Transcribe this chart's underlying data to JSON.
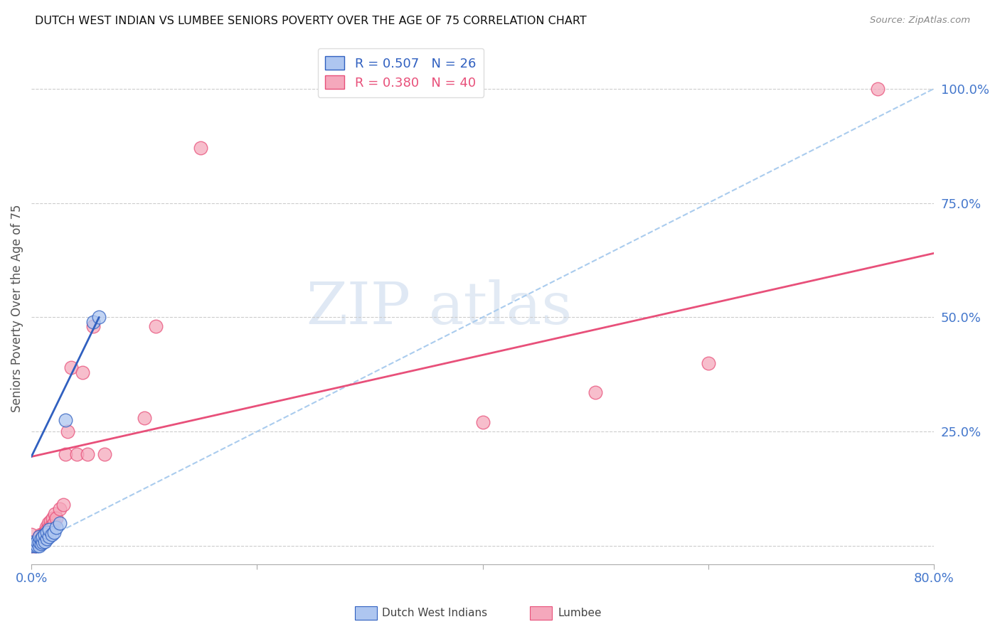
{
  "title": "DUTCH WEST INDIAN VS LUMBEE SENIORS POVERTY OVER THE AGE OF 75 CORRELATION CHART",
  "source": "Source: ZipAtlas.com",
  "ylabel": "Seniors Poverty Over the Age of 75",
  "xlim": [
    0.0,
    0.8
  ],
  "ylim": [
    -0.04,
    1.08
  ],
  "xticks": [
    0.0,
    0.2,
    0.4,
    0.6,
    0.8
  ],
  "xtick_labels": [
    "0.0%",
    "",
    "",
    "",
    "80.0%"
  ],
  "ytick_positions": [
    0.0,
    0.25,
    0.5,
    0.75,
    1.0
  ],
  "ytick_labels": [
    "",
    "25.0%",
    "50.0%",
    "75.0%",
    "100.0%"
  ],
  "legend_blue_r": "R = 0.507",
  "legend_blue_n": "N = 26",
  "legend_pink_r": "R = 0.380",
  "legend_pink_n": "N = 40",
  "blue_color": "#AEC6F0",
  "pink_color": "#F5A8BC",
  "blue_line_color": "#3060C0",
  "pink_line_color": "#E8507A",
  "ref_line_color": "#AACCEE",
  "watermark_zip": "ZIP",
  "watermark_atlas": "atlas",
  "dutch_x": [
    0.0,
    0.0,
    0.003,
    0.003,
    0.005,
    0.005,
    0.007,
    0.007,
    0.007,
    0.009,
    0.009,
    0.01,
    0.01,
    0.012,
    0.012,
    0.014,
    0.014,
    0.016,
    0.016,
    0.018,
    0.02,
    0.022,
    0.025,
    0.03,
    0.055,
    0.06
  ],
  "dutch_y": [
    0.0,
    0.008,
    0.0,
    0.005,
    0.0,
    0.01,
    0.0,
    0.01,
    0.02,
    0.005,
    0.015,
    0.008,
    0.02,
    0.01,
    0.025,
    0.015,
    0.03,
    0.02,
    0.035,
    0.025,
    0.03,
    0.04,
    0.05,
    0.275,
    0.49,
    0.5
  ],
  "lumbee_x": [
    0.0,
    0.0,
    0.0,
    0.003,
    0.004,
    0.005,
    0.006,
    0.007,
    0.008,
    0.009,
    0.01,
    0.01,
    0.012,
    0.013,
    0.014,
    0.015,
    0.016,
    0.017,
    0.018,
    0.019,
    0.02,
    0.021,
    0.022,
    0.025,
    0.028,
    0.03,
    0.032,
    0.035,
    0.04,
    0.045,
    0.05,
    0.055,
    0.065,
    0.1,
    0.11,
    0.15,
    0.4,
    0.5,
    0.6,
    0.75
  ],
  "lumbee_y": [
    0.0,
    0.008,
    0.025,
    0.0,
    0.01,
    0.01,
    0.015,
    0.02,
    0.025,
    0.015,
    0.02,
    0.025,
    0.03,
    0.04,
    0.035,
    0.05,
    0.04,
    0.055,
    0.045,
    0.06,
    0.05,
    0.07,
    0.06,
    0.08,
    0.09,
    0.2,
    0.25,
    0.39,
    0.2,
    0.38,
    0.2,
    0.48,
    0.2,
    0.28,
    0.48,
    0.87,
    0.27,
    0.335,
    0.4,
    1.0
  ],
  "blue_line_x": [
    0.0,
    0.06
  ],
  "blue_line_y": [
    0.195,
    0.5
  ],
  "pink_line_x": [
    0.0,
    0.8
  ],
  "pink_line_y": [
    0.195,
    0.64
  ],
  "ref_line_x": [
    0.0,
    0.8
  ],
  "ref_line_y": [
    0.0,
    1.0
  ]
}
